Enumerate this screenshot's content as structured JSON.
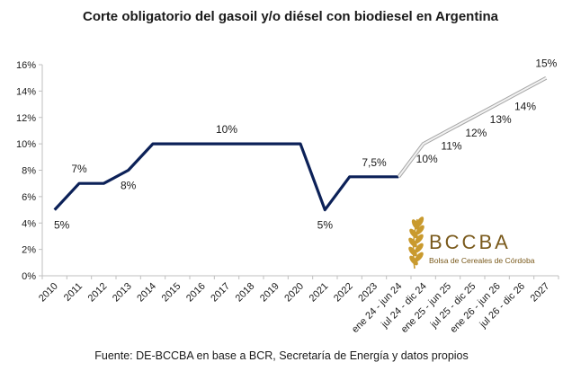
{
  "chart_data": {
    "type": "line",
    "title": "Corte obligatorio del gasoil y/o diésel con biodiesel en Argentina",
    "source": "Fuente: DE-BCCBA en base a BCR, Secretaría de Energía y datos propios",
    "categories": [
      "2010",
      "2011",
      "2012",
      "2013",
      "2014",
      "2015",
      "2016",
      "2017",
      "2018",
      "2019",
      "2020",
      "2021",
      "2022",
      "2023",
      "ene 24 - jun 24",
      "jul 24 - dic 24",
      "ene 25 - jun 25",
      "jul 25 - dic 25",
      "ene 26 - jun 26",
      "jul 26 - dic 26",
      "2027"
    ],
    "series": [
      {
        "values": [
          5,
          7,
          7,
          8,
          10,
          10,
          10,
          10,
          10,
          10,
          10,
          5,
          7.5,
          7.5,
          7.5,
          null,
          null,
          null,
          null,
          null,
          null
        ],
        "color": "#0c2158",
        "style": "solid"
      },
      {
        "values": [
          null,
          null,
          null,
          null,
          null,
          null,
          null,
          null,
          null,
          null,
          null,
          null,
          null,
          null,
          7.5,
          10,
          11,
          12,
          13,
          14,
          15
        ],
        "color": "#c9c9c9",
        "style": "projection"
      }
    ],
    "data_labels": [
      {
        "index": 0,
        "text": "5%",
        "pos": "below"
      },
      {
        "index": 1,
        "text": "7%",
        "pos": "above"
      },
      {
        "index": 3,
        "text": "8%",
        "pos": "below"
      },
      {
        "index": 7,
        "text": "10%",
        "pos": "above"
      },
      {
        "index": 11,
        "text": "5%",
        "pos": "below"
      },
      {
        "index": 13,
        "text": "7,5%",
        "pos": "above"
      },
      {
        "index": 15,
        "text": "10%",
        "pos": "below"
      },
      {
        "index": 16,
        "text": "11%",
        "pos": "below"
      },
      {
        "index": 17,
        "text": "12%",
        "pos": "below"
      },
      {
        "index": 18,
        "text": "13%",
        "pos": "below"
      },
      {
        "index": 19,
        "text": "14%",
        "pos": "below"
      },
      {
        "index": 20,
        "text": "15%",
        "pos": "above"
      }
    ],
    "ylim": [
      0,
      16
    ],
    "yticks": [
      0,
      2,
      4,
      6,
      8,
      10,
      12,
      14,
      16
    ],
    "ytick_labels": [
      "0%",
      "2%",
      "4%",
      "6%",
      "8%",
      "10%",
      "12%",
      "14%",
      "16%"
    ],
    "grid": false,
    "legend": "none"
  },
  "logo": {
    "name": "BCCBA",
    "subtitle": "Bolsa de Cereales de Córdoba",
    "icon": "wheat-icon",
    "color": "#c99a2e"
  }
}
